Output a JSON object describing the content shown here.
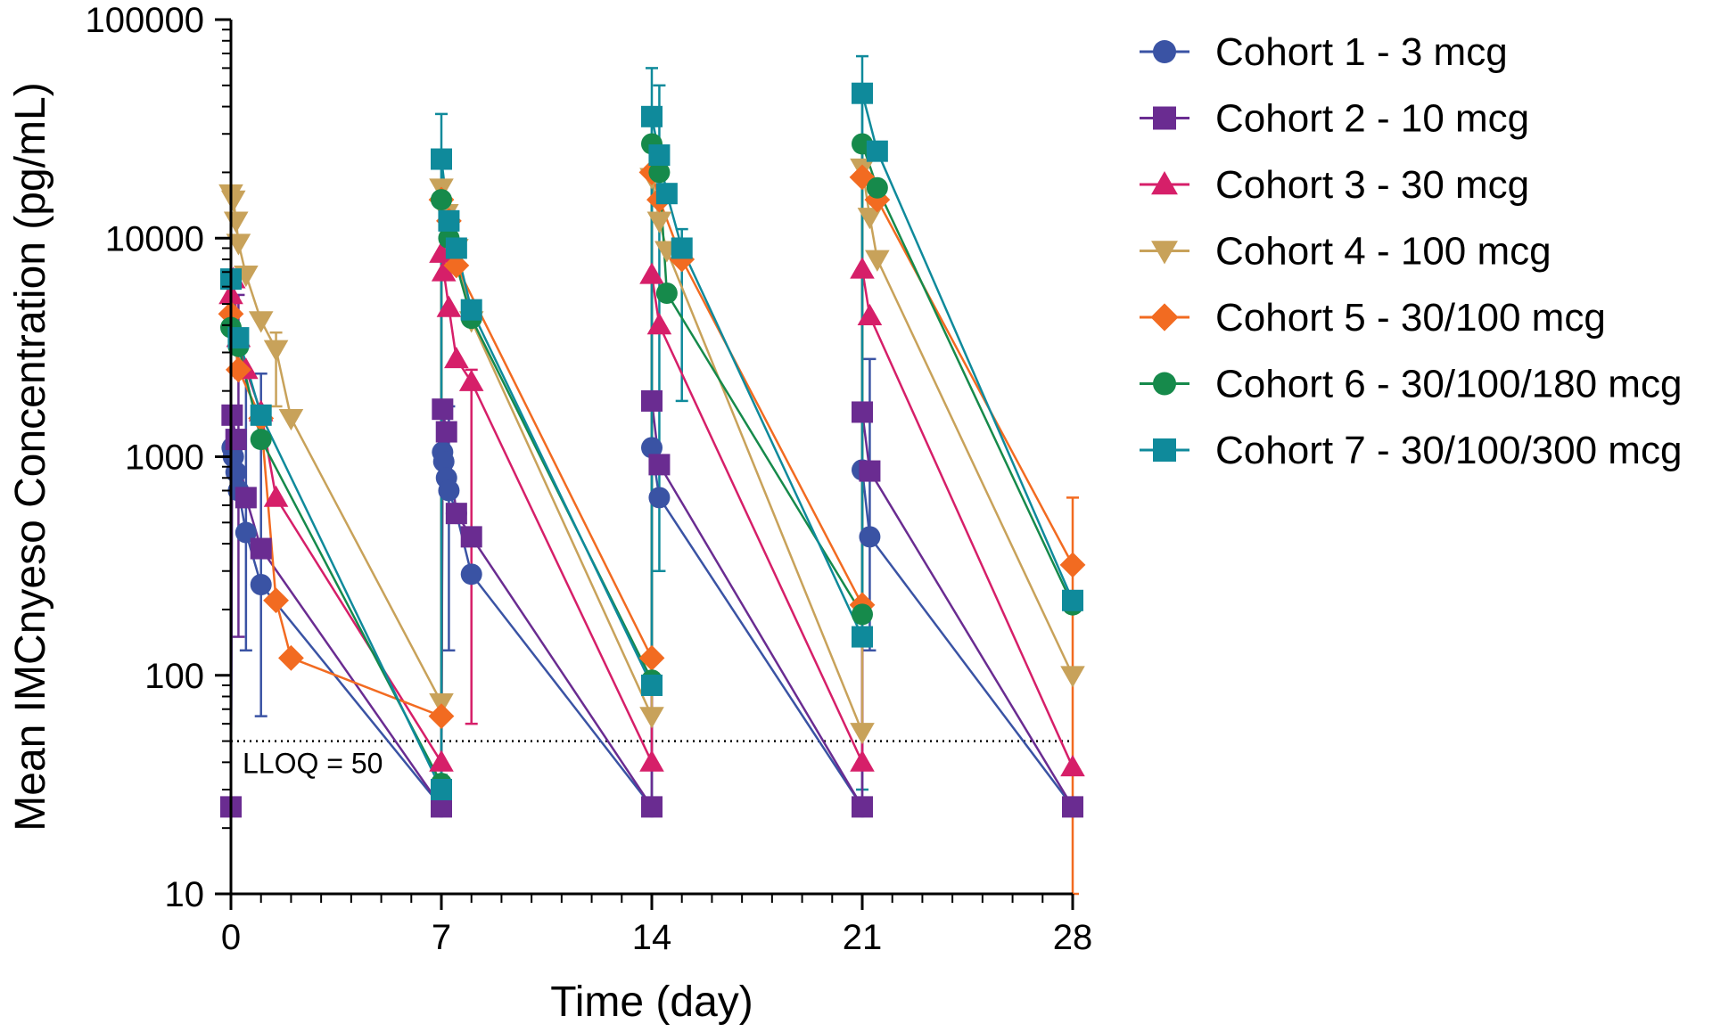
{
  "chart_data": {
    "type": "line",
    "title": "",
    "xlabel": "Time (day)",
    "ylabel": "Mean IMCnyeso Concentration (pg/mL)",
    "yscale": "log",
    "xlim": [
      0,
      28
    ],
    "ylim": [
      10,
      100000
    ],
    "xticks": [
      0,
      7,
      14,
      21,
      28
    ],
    "xtick_labels": [
      "0",
      "7",
      "14",
      "21",
      "28"
    ],
    "yticks": [
      10,
      100,
      1000,
      10000,
      100000
    ],
    "ytick_labels": [
      "10",
      "100",
      "1000",
      "10000",
      "100000"
    ],
    "reference_line": {
      "y": 50,
      "label": "LLOQ = 50",
      "style": "dotted"
    },
    "legend_position": "right",
    "series": [
      {
        "name": "Cohort 1 - 3 mcg",
        "color": "#3a53a4",
        "marker": "circle",
        "points": [
          {
            "x": 0,
            "y": 25
          },
          {
            "x": 0.04,
            "y": 1100
          },
          {
            "x": 0.08,
            "y": 1000
          },
          {
            "x": 0.17,
            "y": 850
          },
          {
            "x": 0.25,
            "y": 700
          },
          {
            "x": 0.5,
            "y": 450
          },
          {
            "x": 1,
            "y": 260
          },
          {
            "x": 7,
            "y": 25
          },
          {
            "x": 7.04,
            "y": 1050
          },
          {
            "x": 7.08,
            "y": 950
          },
          {
            "x": 7.17,
            "y": 800
          },
          {
            "x": 7.25,
            "y": 700
          },
          {
            "x": 7.5,
            "y": 550
          },
          {
            "x": 8,
            "y": 290
          },
          {
            "x": 14,
            "y": 25
          },
          {
            "x": 14,
            "y": 1100
          },
          {
            "x": 14.25,
            "y": 650
          },
          {
            "x": 21,
            "y": 25
          },
          {
            "x": 21,
            "y": 870
          },
          {
            "x": 21.25,
            "y": 430
          },
          {
            "x": 28,
            "y": 25
          }
        ]
      },
      {
        "name": "Cohort 2 - 10 mcg",
        "color": "#6a2c91",
        "marker": "square",
        "points": [
          {
            "x": 0,
            "y": 25
          },
          {
            "x": 0.04,
            "y": 1550
          },
          {
            "x": 0.17,
            "y": 1200
          },
          {
            "x": 0.5,
            "y": 650
          },
          {
            "x": 1,
            "y": 380
          },
          {
            "x": 7,
            "y": 25
          },
          {
            "x": 7.04,
            "y": 1650
          },
          {
            "x": 7.17,
            "y": 1300
          },
          {
            "x": 7.5,
            "y": 550
          },
          {
            "x": 8,
            "y": 430
          },
          {
            "x": 14,
            "y": 25
          },
          {
            "x": 14,
            "y": 1800
          },
          {
            "x": 14.25,
            "y": 920
          },
          {
            "x": 21,
            "y": 25
          },
          {
            "x": 21,
            "y": 1600
          },
          {
            "x": 21.25,
            "y": 860
          },
          {
            "x": 28,
            "y": 25
          }
        ]
      },
      {
        "name": "Cohort 3 - 30 mcg",
        "color": "#d61f69",
        "marker": "triangle-up",
        "points": [
          {
            "x": 0,
            "y": 5500
          },
          {
            "x": 0.08,
            "y": 6500
          },
          {
            "x": 0.25,
            "y": 3500
          },
          {
            "x": 0.5,
            "y": 2500
          },
          {
            "x": 1,
            "y": 1600
          },
          {
            "x": 1.5,
            "y": 650
          },
          {
            "x": 7,
            "y": 40
          },
          {
            "x": 7,
            "y": 8500
          },
          {
            "x": 7.08,
            "y": 7000
          },
          {
            "x": 7.25,
            "y": 4800
          },
          {
            "x": 7.5,
            "y": 2800
          },
          {
            "x": 8,
            "y": 2200
          },
          {
            "x": 14,
            "y": 40
          },
          {
            "x": 14,
            "y": 6800
          },
          {
            "x": 14.25,
            "y": 4000
          },
          {
            "x": 21,
            "y": 40
          },
          {
            "x": 21,
            "y": 7200
          },
          {
            "x": 21.25,
            "y": 4400
          },
          {
            "x": 28,
            "y": 38
          }
        ]
      },
      {
        "name": "Cohort 4 - 100 mcg",
        "color": "#c8a25a",
        "marker": "triangle-down",
        "points": [
          {
            "x": 0,
            "y": 16000
          },
          {
            "x": 0.08,
            "y": 15000
          },
          {
            "x": 0.17,
            "y": 12000
          },
          {
            "x": 0.25,
            "y": 9500
          },
          {
            "x": 0.5,
            "y": 6800
          },
          {
            "x": 1,
            "y": 4200
          },
          {
            "x": 1.5,
            "y": 3100
          },
          {
            "x": 2,
            "y": 1500
          },
          {
            "x": 7,
            "y": 75
          },
          {
            "x": 7,
            "y": 17000
          },
          {
            "x": 7.17,
            "y": 13000
          },
          {
            "x": 7.5,
            "y": 9000
          },
          {
            "x": 8,
            "y": 4200
          },
          {
            "x": 14,
            "y": 65
          },
          {
            "x": 14,
            "y": 19000
          },
          {
            "x": 14.25,
            "y": 12000
          },
          {
            "x": 14.5,
            "y": 8800
          },
          {
            "x": 21,
            "y": 55
          },
          {
            "x": 21,
            "y": 21000
          },
          {
            "x": 21.25,
            "y": 12500
          },
          {
            "x": 21.5,
            "y": 8000
          },
          {
            "x": 28,
            "y": 100
          }
        ]
      },
      {
        "name": "Cohort 5 - 30/100 mcg",
        "color": "#f26b21",
        "marker": "diamond",
        "points": [
          {
            "x": 0,
            "y": 4500
          },
          {
            "x": 0.25,
            "y": 2500
          },
          {
            "x": 1,
            "y": 1500
          },
          {
            "x": 1.5,
            "y": 220
          },
          {
            "x": 2,
            "y": 120
          },
          {
            "x": 7,
            "y": 65
          },
          {
            "x": 7,
            "y": 15000
          },
          {
            "x": 7.25,
            "y": 12000
          },
          {
            "x": 7.5,
            "y": 7500
          },
          {
            "x": 14,
            "y": 120
          },
          {
            "x": 14,
            "y": 20000
          },
          {
            "x": 14.25,
            "y": 15000
          },
          {
            "x": 15,
            "y": 8000
          },
          {
            "x": 21,
            "y": 210
          },
          {
            "x": 21,
            "y": 19000
          },
          {
            "x": 21.5,
            "y": 15000
          },
          {
            "x": 28,
            "y": 320
          }
        ]
      },
      {
        "name": "Cohort 6 - 30/100/180 mcg",
        "color": "#168a4b",
        "marker": "circle",
        "points": [
          {
            "x": 0,
            "y": 3900
          },
          {
            "x": 0.25,
            "y": 3200
          },
          {
            "x": 1,
            "y": 1200
          },
          {
            "x": 7,
            "y": 32
          },
          {
            "x": 7,
            "y": 15000
          },
          {
            "x": 7.25,
            "y": 10000
          },
          {
            "x": 8,
            "y": 4300
          },
          {
            "x": 14,
            "y": 95
          },
          {
            "x": 14,
            "y": 27000
          },
          {
            "x": 14.25,
            "y": 20000
          },
          {
            "x": 14.5,
            "y": 5600
          },
          {
            "x": 21,
            "y": 190
          },
          {
            "x": 21,
            "y": 27000
          },
          {
            "x": 21.5,
            "y": 17000
          },
          {
            "x": 28,
            "y": 210
          }
        ]
      },
      {
        "name": "Cohort 7 - 30/100/300 mcg",
        "color": "#0f8a9b",
        "marker": "square",
        "points": [
          {
            "x": 0,
            "y": 6500
          },
          {
            "x": 0.25,
            "y": 3500
          },
          {
            "x": 1,
            "y": 1550
          },
          {
            "x": 7,
            "y": 30
          },
          {
            "x": 7,
            "y": 23000
          },
          {
            "x": 7.25,
            "y": 12000
          },
          {
            "x": 7.5,
            "y": 9000
          },
          {
            "x": 8,
            "y": 4700
          },
          {
            "x": 14,
            "y": 90
          },
          {
            "x": 14,
            "y": 36000
          },
          {
            "x": 14.25,
            "y": 24000
          },
          {
            "x": 14.5,
            "y": 16000
          },
          {
            "x": 15,
            "y": 9000
          },
          {
            "x": 21,
            "y": 150
          },
          {
            "x": 21,
            "y": 46000
          },
          {
            "x": 21.5,
            "y": 25000
          },
          {
            "x": 28,
            "y": 220
          }
        ]
      }
    ],
    "error_bars": [
      {
        "x": 0,
        "y_low": 25,
        "y_high": 6800,
        "series": "Cohort 7 - 30/100/300 mcg"
      },
      {
        "x": 0.25,
        "y_low": 150,
        "y_high": 5500,
        "series": "Cohort 2 - 10 mcg"
      },
      {
        "x": 0.5,
        "y_low": 130,
        "y_high": 2500,
        "series": "Cohort 1 - 3 mcg"
      },
      {
        "x": 1,
        "y_low": 65,
        "y_high": 2400,
        "series": "Cohort 1 - 3 mcg"
      },
      {
        "x": 1.5,
        "y_low": 1700,
        "y_high": 3700,
        "series": "Cohort 4 - 100 mcg"
      },
      {
        "x": 7,
        "y_low": 35,
        "y_high": 37000,
        "series": "Cohort 7 - 30/100/300 mcg"
      },
      {
        "x": 7.25,
        "y_low": 130,
        "y_high": 1700,
        "series": "Cohort 1 - 3 mcg"
      },
      {
        "x": 8,
        "y_low": 60,
        "y_high": 2500,
        "series": "Cohort 3 - 30 mcg"
      },
      {
        "x": 14,
        "y_low": 25,
        "y_high": 60000,
        "series": "Cohort 7 - 30/100/300 mcg"
      },
      {
        "x": 14.25,
        "y_low": 300,
        "y_high": 50000,
        "series": "Cohort 7 - 30/100/300 mcg"
      },
      {
        "x": 15,
        "y_low": 1800,
        "y_high": 11000,
        "series": "Cohort 7 - 30/100/300 mcg"
      },
      {
        "x": 21,
        "y_low": 30,
        "y_high": 68000,
        "series": "Cohort 7 - 30/100/300 mcg"
      },
      {
        "x": 21.25,
        "y_low": 130,
        "y_high": 2800,
        "series": "Cohort 1 - 3 mcg"
      },
      {
        "x": 28,
        "y_low": 10,
        "y_high": 650,
        "series": "Cohort 5 - 30/100 mcg"
      }
    ]
  }
}
